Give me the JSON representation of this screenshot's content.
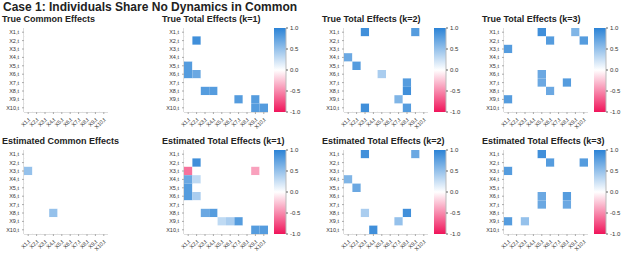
{
  "title": "Case 1: Individuals Share No Dynamics in Common",
  "chart_data": [
    {
      "type": "heatmap",
      "title": "True Common Effects",
      "x": [
        "X1,t",
        "X2,t",
        "X3,t",
        "X4,t",
        "X5,t",
        "X6,t",
        "X7,t",
        "X8,t",
        "X9,t",
        "X10,t"
      ],
      "y": [
        "X1,t",
        "X2,t",
        "X3,t",
        "X4,t",
        "X5,t",
        "X6,t",
        "X7,t",
        "X8,t",
        "X9,t",
        "X10,t"
      ],
      "z": [
        [
          0,
          0,
          0,
          0,
          0,
          0,
          0,
          0,
          0,
          0
        ],
        [
          0,
          0,
          0,
          0,
          0,
          0,
          0,
          0,
          0,
          0
        ],
        [
          0,
          0,
          0,
          0,
          0,
          0,
          0,
          0,
          0,
          0
        ],
        [
          0,
          0,
          0,
          0,
          0,
          0,
          0,
          0,
          0,
          0
        ],
        [
          0,
          0,
          0,
          0,
          0,
          0,
          0,
          0,
          0,
          0
        ],
        [
          0,
          0,
          0,
          0,
          0,
          0,
          0,
          0,
          0,
          0
        ],
        [
          0,
          0,
          0,
          0,
          0,
          0,
          0,
          0,
          0,
          0
        ],
        [
          0,
          0,
          0,
          0,
          0,
          0,
          0,
          0,
          0,
          0
        ],
        [
          0,
          0,
          0,
          0,
          0,
          0,
          0,
          0,
          0,
          0
        ],
        [
          0,
          0,
          0,
          0,
          0,
          0,
          0,
          0,
          0,
          0
        ]
      ]
    },
    {
      "type": "heatmap",
      "title": "True Total Effects (k=1)",
      "x": [
        "X1,t",
        "X2,t",
        "X3,t",
        "X4,t",
        "X5,t",
        "X6,t",
        "X7,t",
        "X8,t",
        "X9,t",
        "X10,t"
      ],
      "y": [
        "X1,t",
        "X2,t",
        "X3,t",
        "X4,t",
        "X5,t",
        "X6,t",
        "X7,t",
        "X8,t",
        "X9,t",
        "X10,t"
      ],
      "z": [
        [
          0,
          0,
          0,
          0,
          0,
          0,
          0,
          0,
          0,
          0
        ],
        [
          0,
          0.9,
          0,
          0,
          0,
          0,
          0,
          0,
          0,
          0
        ],
        [
          0,
          0,
          0,
          0,
          0,
          0,
          0,
          0,
          0,
          0
        ],
        [
          0,
          0,
          0,
          0,
          0,
          0,
          0,
          0,
          0,
          0
        ],
        [
          0.8,
          0,
          0,
          0,
          0,
          0,
          0,
          0,
          0,
          0
        ],
        [
          0.8,
          0.7,
          0,
          0,
          0,
          0,
          0,
          0,
          0,
          0
        ],
        [
          0,
          0,
          0,
          0,
          0,
          0,
          0,
          0,
          0,
          0
        ],
        [
          0,
          0,
          0.8,
          0.8,
          0,
          0,
          0,
          0,
          0,
          0
        ],
        [
          0,
          0,
          0,
          0,
          0,
          0,
          0.8,
          0,
          0.8,
          0
        ],
        [
          0,
          0,
          0,
          0,
          0,
          0,
          0,
          0,
          0.8,
          0.8
        ]
      ],
      "colorbar": {
        "range": [
          -1,
          1
        ],
        "ticks": [
          {
            "value": -1,
            "label": "-1.0"
          },
          {
            "value": -0.5,
            "label": "-0.5"
          },
          {
            "value": 0,
            "label": "0.0"
          },
          {
            "value": 0.5,
            "label": "0.5"
          },
          {
            "value": 1,
            "label": "1.0"
          }
        ]
      }
    },
    {
      "type": "heatmap",
      "title": "True Total Effects (k=2)",
      "x": [
        "X1,t",
        "X2,t",
        "X3,t",
        "X4,t",
        "X5,t",
        "X6,t",
        "X7,t",
        "X8,t",
        "X9,t",
        "X10,t"
      ],
      "y": [
        "X1,t",
        "X2,t",
        "X3,t",
        "X4,t",
        "X5,t",
        "X6,t",
        "X7,t",
        "X8,t",
        "X9,t",
        "X10,t"
      ],
      "z": [
        [
          0,
          0,
          0.9,
          0,
          0,
          0,
          0,
          0,
          0.8,
          0
        ],
        [
          0,
          0,
          0,
          0,
          0,
          0,
          0,
          0,
          0,
          0
        ],
        [
          0,
          0,
          0,
          0,
          0,
          0,
          0,
          0,
          0,
          0
        ],
        [
          0.7,
          0,
          0,
          0,
          0,
          0,
          0,
          0,
          0,
          0
        ],
        [
          0,
          0.8,
          0,
          0,
          0,
          0,
          0,
          0,
          0,
          0
        ],
        [
          0,
          0,
          0,
          0,
          0.4,
          0,
          0,
          0,
          0,
          0
        ],
        [
          0,
          0,
          0,
          0,
          0,
          0,
          0,
          0.8,
          0,
          0
        ],
        [
          0,
          0,
          0,
          0,
          0,
          0,
          0,
          0.9,
          0,
          0
        ],
        [
          0,
          0,
          0,
          0,
          0,
          0,
          0.6,
          0,
          0,
          0
        ],
        [
          0,
          0,
          0.9,
          0,
          0,
          0,
          0,
          0.8,
          0,
          0
        ]
      ],
      "colorbar": {
        "range": [
          -1,
          1
        ],
        "ticks": [
          {
            "value": -1,
            "label": "-1.0"
          },
          {
            "value": -0.5,
            "label": "-0.5"
          },
          {
            "value": 0,
            "label": "0.0"
          },
          {
            "value": 0.5,
            "label": "0.5"
          },
          {
            "value": 1,
            "label": "1.0"
          }
        ]
      }
    },
    {
      "type": "heatmap",
      "title": "True Total Effects (k=3)",
      "x": [
        "X1,t",
        "X2,t",
        "X3,t",
        "X4,t",
        "X5,t",
        "X6,t",
        "X7,t",
        "X8,t",
        "X9,t",
        "X10,t"
      ],
      "y": [
        "X1,t",
        "X2,t",
        "X3,t",
        "X4,t",
        "X5,t",
        "X6,t",
        "X7,t",
        "X8,t",
        "X9,t",
        "X10,t"
      ],
      "z": [
        [
          0,
          0,
          0,
          0,
          0.9,
          0,
          0,
          0,
          0.6,
          0
        ],
        [
          0,
          0,
          0,
          0,
          0,
          0.8,
          0,
          0,
          0,
          0.8
        ],
        [
          0.8,
          0,
          0,
          0,
          0,
          0,
          0,
          0,
          0,
          0
        ],
        [
          0,
          0,
          0,
          0,
          0,
          0,
          0,
          0,
          0,
          0
        ],
        [
          0,
          0,
          0,
          0,
          0,
          0,
          0,
          0,
          0,
          0
        ],
        [
          0,
          0,
          0,
          0,
          0.7,
          0,
          0,
          0,
          0,
          0
        ],
        [
          0,
          0,
          0,
          0,
          0.7,
          0,
          0,
          0.8,
          0,
          0
        ],
        [
          0,
          0,
          0,
          0,
          0,
          0.7,
          0,
          0,
          0,
          0
        ],
        [
          0.8,
          0,
          0,
          0,
          0,
          0,
          0,
          0,
          0,
          0
        ],
        [
          0,
          0,
          0,
          0,
          0,
          0,
          0,
          0,
          0,
          0
        ]
      ],
      "colorbar": {
        "range": [
          -1,
          1
        ],
        "ticks": [
          {
            "value": -1,
            "label": "-1.0"
          },
          {
            "value": -0.5,
            "label": "-0.5"
          },
          {
            "value": 0,
            "label": "0.0"
          },
          {
            "value": 0.5,
            "label": "0.5"
          },
          {
            "value": 1,
            "label": "1.0"
          }
        ]
      }
    },
    {
      "type": "heatmap",
      "title": "Estimated Common Effects",
      "x": [
        "X1,t",
        "X2,t",
        "X3,t",
        "X4,t",
        "X5,t",
        "X6,t",
        "X7,t",
        "X8,t",
        "X9,t",
        "X10,t"
      ],
      "y": [
        "X1,t",
        "X2,t",
        "X3,t",
        "X4,t",
        "X5,t",
        "X6,t",
        "X7,t",
        "X8,t",
        "X9,t",
        "X10,t"
      ],
      "z": [
        [
          0,
          0,
          0,
          0,
          0,
          0,
          0,
          0,
          0,
          0
        ],
        [
          0,
          0,
          0,
          0,
          0,
          0,
          0,
          0,
          0,
          0
        ],
        [
          0.5,
          0,
          0,
          0,
          0,
          0,
          0,
          0,
          0,
          0
        ],
        [
          0,
          0,
          0,
          0,
          0,
          0,
          0,
          0,
          0,
          0
        ],
        [
          0,
          0,
          0,
          0,
          0,
          0,
          0,
          0,
          0,
          0
        ],
        [
          0,
          0,
          0,
          0,
          0,
          0,
          0,
          0,
          0,
          0
        ],
        [
          0,
          0,
          0,
          0,
          0,
          0,
          0,
          0,
          0,
          0
        ],
        [
          0,
          0,
          0,
          0.5,
          0,
          0,
          0,
          0,
          0,
          0
        ],
        [
          0,
          0,
          0,
          0,
          0,
          0,
          0,
          0,
          0,
          0
        ],
        [
          0,
          0,
          0,
          0,
          0,
          0,
          0,
          0,
          0,
          0
        ]
      ]
    },
    {
      "type": "heatmap",
      "title": "Estimated Total Effects (k=1)",
      "x": [
        "X1,t",
        "X2,t",
        "X3,t",
        "X4,t",
        "X5,t",
        "X6,t",
        "X7,t",
        "X8,t",
        "X9,t",
        "X10,t"
      ],
      "y": [
        "X1,t",
        "X2,t",
        "X3,t",
        "X4,t",
        "X5,t",
        "X6,t",
        "X7,t",
        "X8,t",
        "X9,t",
        "X10,t"
      ],
      "z": [
        [
          0,
          0,
          0,
          0,
          0,
          0,
          0,
          0,
          0,
          0
        ],
        [
          0,
          0.9,
          0,
          0,
          0,
          0,
          0,
          0,
          0,
          0
        ],
        [
          -0.6,
          0,
          0,
          0,
          0,
          0,
          0,
          0,
          -0.4,
          0
        ],
        [
          0.7,
          0.3,
          0,
          0,
          0,
          0,
          0,
          0,
          0,
          0
        ],
        [
          0.8,
          0,
          0,
          0,
          0,
          0,
          0,
          0,
          0,
          0
        ],
        [
          0.8,
          0.4,
          0,
          0,
          0,
          0,
          0,
          0,
          0,
          0
        ],
        [
          0,
          0,
          0,
          0,
          0,
          0,
          0,
          0,
          0,
          0
        ],
        [
          0,
          0,
          0.7,
          0.8,
          0,
          0,
          0,
          0,
          0,
          0
        ],
        [
          0,
          0,
          0,
          0,
          0.3,
          0.4,
          0.8,
          0,
          0,
          0
        ],
        [
          0,
          0,
          0,
          0,
          0,
          0,
          0,
          0,
          0.8,
          0.8
        ]
      ],
      "colorbar": {
        "range": [
          -1,
          1
        ],
        "ticks": [
          {
            "value": -1,
            "label": "-1.0"
          },
          {
            "value": -0.5,
            "label": "-0.5"
          },
          {
            "value": 0,
            "label": "0.0"
          },
          {
            "value": 0.5,
            "label": "0.5"
          },
          {
            "value": 1,
            "label": "1.0"
          }
        ]
      }
    },
    {
      "type": "heatmap",
      "title": "Estimated Total Effects (k=2)",
      "x": [
        "X1,t",
        "X2,t",
        "X3,t",
        "X4,t",
        "X5,t",
        "X6,t",
        "X7,t",
        "X8,t",
        "X9,t",
        "X10,t"
      ],
      "y": [
        "X1,t",
        "X2,t",
        "X3,t",
        "X4,t",
        "X5,t",
        "X6,t",
        "X7,t",
        "X8,t",
        "X9,t",
        "X10,t"
      ],
      "z": [
        [
          0,
          0,
          0.9,
          0,
          0,
          0,
          0,
          0,
          0.7,
          0
        ],
        [
          0,
          0,
          0,
          0,
          0,
          0,
          0,
          0,
          0,
          0
        ],
        [
          0,
          0,
          0,
          0,
          0,
          0,
          0,
          0,
          0,
          0
        ],
        [
          0.6,
          0,
          0,
          0,
          0,
          0,
          0,
          0,
          0,
          0
        ],
        [
          0,
          0.7,
          0,
          0,
          0,
          0,
          0,
          0,
          0,
          0
        ],
        [
          0,
          0,
          0,
          0,
          0,
          0,
          0,
          0,
          0,
          0
        ],
        [
          0,
          0,
          0,
          0,
          0,
          0,
          0,
          0,
          0,
          0
        ],
        [
          0,
          0,
          0.4,
          0,
          0,
          0,
          0,
          0.9,
          0,
          0
        ],
        [
          0,
          0,
          0,
          0,
          0,
          0,
          0.5,
          0,
          0,
          0
        ],
        [
          0,
          0,
          0,
          0.9,
          0,
          0,
          0,
          0,
          0,
          0
        ]
      ],
      "colorbar": {
        "range": [
          -1,
          1
        ],
        "ticks": [
          {
            "value": -1,
            "label": "-1.0"
          },
          {
            "value": -0.5,
            "label": "-0.5"
          },
          {
            "value": 0,
            "label": "0.0"
          },
          {
            "value": 0.5,
            "label": "0.5"
          },
          {
            "value": 1,
            "label": "1.0"
          }
        ]
      }
    },
    {
      "type": "heatmap",
      "title": "Estimated Total Effects (k=3)",
      "x": [
        "X1,t",
        "X2,t",
        "X3,t",
        "X4,t",
        "X5,t",
        "X6,t",
        "X7,t",
        "X8,t",
        "X9,t",
        "X10,t"
      ],
      "y": [
        "X1,t",
        "X2,t",
        "X3,t",
        "X4,t",
        "X5,t",
        "X6,t",
        "X7,t",
        "X8,t",
        "X9,t",
        "X10,t"
      ],
      "z": [
        [
          0,
          0,
          0,
          0,
          0.9,
          0,
          0,
          0,
          0,
          0
        ],
        [
          0,
          0,
          0,
          0,
          0,
          0.8,
          0,
          0,
          0,
          0.8
        ],
        [
          0.8,
          0,
          0,
          0,
          0,
          0,
          0,
          0,
          0,
          0
        ],
        [
          0,
          0,
          0,
          0,
          0,
          0,
          0,
          0,
          0,
          0
        ],
        [
          0,
          0,
          0,
          0,
          0,
          0,
          0,
          0,
          0,
          0
        ],
        [
          0,
          0,
          0,
          0,
          0.7,
          0,
          0,
          0.8,
          0,
          0
        ],
        [
          0,
          0,
          0,
          0,
          0.7,
          0,
          0,
          0.7,
          0,
          0
        ],
        [
          0,
          0,
          0,
          0,
          0,
          0,
          0,
          0,
          0,
          0
        ],
        [
          0.8,
          0,
          0.5,
          0,
          0,
          0,
          0,
          0,
          0,
          0
        ],
        [
          0,
          0,
          0,
          0,
          0,
          0,
          0,
          0,
          0,
          0
        ]
      ],
      "colorbar": {
        "range": [
          -1,
          1
        ],
        "ticks": [
          {
            "value": -1,
            "label": "-1.0"
          },
          {
            "value": -0.5,
            "label": "-0.5"
          },
          {
            "value": 0,
            "label": "0.0"
          },
          {
            "value": 0.5,
            "label": "0.5"
          },
          {
            "value": 1,
            "label": "1.0"
          }
        ]
      }
    }
  ]
}
